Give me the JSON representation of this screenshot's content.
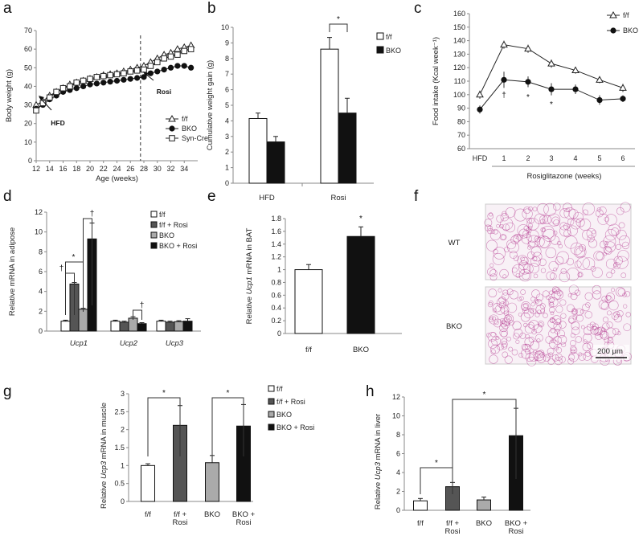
{
  "chart_data": [
    {
      "panel": "a",
      "type": "line",
      "xlabel": "Age (weeks)",
      "ylabel": "Body weight (g)",
      "xlim": [
        12,
        36
      ],
      "ylim": [
        0,
        70
      ],
      "xticks": [
        "12",
        "14",
        "16",
        "18",
        "20",
        "22",
        "24",
        "26",
        "28",
        "30",
        "32",
        "34"
      ],
      "yticks": [
        "0",
        "10",
        "20",
        "30",
        "40",
        "50",
        "60",
        "70"
      ],
      "x": [
        12,
        13,
        14,
        15,
        16,
        17,
        18,
        19,
        20,
        21,
        22,
        23,
        24,
        25,
        26,
        27,
        28,
        29,
        30,
        31,
        32,
        33,
        34,
        35
      ],
      "series": [
        {
          "name": "f/f",
          "marker": "triangle",
          "values": [
            30,
            32,
            35,
            37,
            39,
            41,
            42,
            43,
            44,
            45,
            46,
            46.5,
            47,
            48,
            49,
            50,
            51,
            53,
            55,
            57,
            58,
            60,
            61,
            62
          ]
        },
        {
          "name": "BKO",
          "marker": "circle",
          "values": [
            28,
            30,
            33,
            35,
            37,
            38,
            39,
            40,
            41,
            41.5,
            42,
            42.5,
            43,
            43.5,
            44,
            44.5,
            45,
            47,
            48,
            49,
            50,
            51,
            51,
            50
          ]
        },
        {
          "name": "Syn-Cre",
          "marker": "square",
          "values": [
            27,
            31,
            34,
            37,
            39,
            40,
            42,
            43,
            44,
            45,
            45.5,
            46,
            46.5,
            47,
            48,
            48.5,
            49,
            51,
            53,
            55,
            56,
            57,
            59,
            60
          ]
        }
      ],
      "annotations": [
        "HFD",
        "Rosi"
      ]
    },
    {
      "panel": "b",
      "type": "bar",
      "ylabel": "Cumulative weight gain (g)",
      "ylim": [
        0,
        10
      ],
      "yticks": [
        "0",
        "1",
        "2",
        "3",
        "4",
        "5",
        "6",
        "7",
        "8",
        "9",
        "10"
      ],
      "categories": [
        "HFD",
        "Rosi"
      ],
      "series": [
        {
          "name": "f/f",
          "values": [
            4.15,
            8.6
          ],
          "errors": [
            0.35,
            0.75
          ]
        },
        {
          "name": "BKO",
          "values": [
            2.65,
            4.5
          ],
          "errors": [
            0.35,
            0.95
          ]
        }
      ],
      "significance": "*"
    },
    {
      "panel": "c",
      "type": "line",
      "xlabel": "Rosiglitazone (weeks)",
      "ylabel": "Food intake (Kcal week⁻¹)",
      "ylim": [
        60,
        160
      ],
      "yticks": [
        "60",
        "70",
        "80",
        "90",
        "100",
        "110",
        "120",
        "130",
        "140",
        "150",
        "160"
      ],
      "categories": [
        "HFD",
        "1",
        "2",
        "3",
        "4",
        "5",
        "6"
      ],
      "series": [
        {
          "name": "f/f",
          "marker": "triangle",
          "values": [
            100,
            137,
            134,
            123,
            118,
            111,
            105
          ]
        },
        {
          "name": "BKO",
          "marker": "circle",
          "values": [
            89,
            111,
            109.5,
            104,
            104,
            96,
            97
          ]
        }
      ],
      "point_labels": [
        "",
        "†",
        "*",
        "*",
        "",
        "",
        ""
      ]
    },
    {
      "panel": "d",
      "type": "bar",
      "ylabel": "Relative mRNA in adipose",
      "ylim": [
        0,
        12
      ],
      "yticks": [
        "0",
        "2",
        "4",
        "6",
        "8",
        "10",
        "12"
      ],
      "categories": [
        "Ucp1",
        "Ucp2",
        "Ucp3"
      ],
      "series": [
        {
          "name": "f/f",
          "values": [
            1,
            1,
            1
          ],
          "errors": [
            0.1,
            0.1,
            0.1
          ]
        },
        {
          "name": "f/f + Rosi",
          "values": [
            4.75,
            0.9,
            0.9
          ],
          "errors": [
            0.15,
            0.1,
            0.1
          ]
        },
        {
          "name": "BKO",
          "values": [
            2.2,
            1.3,
            0.95
          ],
          "errors": [
            0.1,
            0.15,
            0.1
          ]
        },
        {
          "name": "BKO + Rosi",
          "values": [
            9.3,
            0.75,
            1.0
          ],
          "errors": [
            1.6,
            0.1,
            0.25
          ]
        }
      ],
      "significance": [
        "†",
        "*",
        "†",
        "†"
      ]
    },
    {
      "panel": "e",
      "type": "bar",
      "ylabel": "Relative Ucp1 mRNA in BAT",
      "ylim": [
        0,
        1.8
      ],
      "yticks": [
        "0",
        "0.2",
        "0.4",
        "0.6",
        "0.8",
        "1",
        "1.2",
        "1.4",
        "1.6",
        "1.8"
      ],
      "categories": [
        "f/f",
        "BKO"
      ],
      "values": [
        1.0,
        1.52
      ],
      "errors": [
        0.08,
        0.15
      ],
      "significance": "*"
    },
    {
      "panel": "f",
      "type": "image",
      "labels": [
        "WT",
        "BKO"
      ],
      "scale_bar": "200 μm"
    },
    {
      "panel": "g",
      "type": "bar",
      "ylabel": "Relative Ucp3 mRNA in muscle",
      "ylim": [
        0,
        3
      ],
      "yticks": [
        "0",
        "0.5",
        "1",
        "1.5",
        "2",
        "2.5",
        "3"
      ],
      "categories": [
        "f/f",
        "f/f + Rosi",
        "BKO",
        "BKO + Rosi"
      ],
      "values": [
        1.0,
        2.12,
        1.08,
        2.1
      ],
      "errors": [
        0.05,
        0.55,
        0.2,
        0.6
      ],
      "legend": [
        "f/f",
        "f/f + Rosi",
        "BKO",
        "BKO + Rosi"
      ],
      "significance": [
        "*",
        "*"
      ]
    },
    {
      "panel": "h",
      "type": "bar",
      "ylabel": "Relative Ucp3 mRNA in liver",
      "ylim": [
        0,
        12
      ],
      "yticks": [
        "0",
        "2",
        "4",
        "6",
        "8",
        "10",
        "12"
      ],
      "categories": [
        "f/f",
        "f/f + Rosi",
        "BKO",
        "BKO + Rosi"
      ],
      "values": [
        1.0,
        2.5,
        1.1,
        7.9
      ],
      "errors": [
        0.25,
        0.45,
        0.3,
        2.9
      ],
      "significance": [
        "*",
        "*"
      ]
    }
  ],
  "panel_letters": [
    "a",
    "b",
    "c",
    "d",
    "e",
    "f",
    "g",
    "h"
  ],
  "colors": {
    "white": "#ffffff",
    "dark_gray": "#555555",
    "light_gray": "#aaaaaa",
    "black": "#111111",
    "stain": "#b0308a"
  }
}
